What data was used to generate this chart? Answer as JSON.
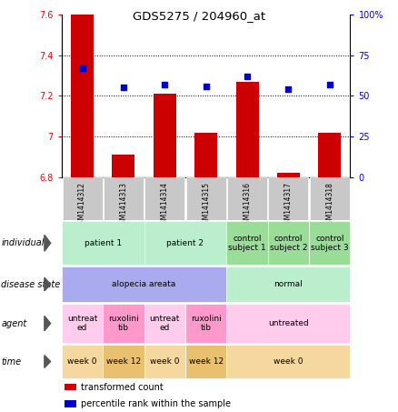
{
  "title": "GDS5275 / 204960_at",
  "samples": [
    "GSM1414312",
    "GSM1414313",
    "GSM1414314",
    "GSM1414315",
    "GSM1414316",
    "GSM1414317",
    "GSM1414318"
  ],
  "bar_values": [
    7.6,
    6.91,
    7.21,
    7.02,
    7.27,
    6.82,
    7.02
  ],
  "dot_values": [
    67,
    55,
    57,
    56,
    62,
    54,
    57
  ],
  "ylim": [
    6.8,
    7.6
  ],
  "yticks": [
    6.8,
    7.0,
    7.2,
    7.4,
    7.6
  ],
  "ytick_labels": [
    "6.8",
    "7",
    "7.2",
    "7.4",
    "7.6"
  ],
  "y2lim": [
    0,
    100
  ],
  "y2ticks": [
    0,
    25,
    50,
    75,
    100
  ],
  "y2ticklabels": [
    "0",
    "25",
    "50",
    "75",
    "100%"
  ],
  "bar_color": "#cc0000",
  "dot_color": "#0000cc",
  "bar_width": 0.55,
  "individual_labels": [
    {
      "text": "patient 1",
      "cols": [
        0,
        1
      ],
      "color": "#bbeecc"
    },
    {
      "text": "patient 2",
      "cols": [
        2,
        3
      ],
      "color": "#bbeecc"
    },
    {
      "text": "control\nsubject 1",
      "cols": [
        4
      ],
      "color": "#99dd99"
    },
    {
      "text": "control\nsubject 2",
      "cols": [
        5
      ],
      "color": "#99dd99"
    },
    {
      "text": "control\nsubject 3",
      "cols": [
        6
      ],
      "color": "#99dd99"
    }
  ],
  "disease_labels": [
    {
      "text": "alopecia areata",
      "cols": [
        0,
        1,
        2,
        3
      ],
      "color": "#aaaaee"
    },
    {
      "text": "normal",
      "cols": [
        4,
        5,
        6
      ],
      "color": "#bbeecc"
    }
  ],
  "agent_labels": [
    {
      "text": "untreat\ned",
      "cols": [
        0
      ],
      "color": "#ffccee"
    },
    {
      "text": "ruxolini\ntib",
      "cols": [
        1
      ],
      "color": "#ff99cc"
    },
    {
      "text": "untreat\ned",
      "cols": [
        2
      ],
      "color": "#ffccee"
    },
    {
      "text": "ruxolini\ntib",
      "cols": [
        3
      ],
      "color": "#ff99cc"
    },
    {
      "text": "untreated",
      "cols": [
        4,
        5,
        6
      ],
      "color": "#ffccee"
    }
  ],
  "time_labels": [
    {
      "text": "week 0",
      "cols": [
        0
      ],
      "color": "#f5d8a0"
    },
    {
      "text": "week 12",
      "cols": [
        1
      ],
      "color": "#e8c070"
    },
    {
      "text": "week 0",
      "cols": [
        2
      ],
      "color": "#f5d8a0"
    },
    {
      "text": "week 12",
      "cols": [
        3
      ],
      "color": "#e8c070"
    },
    {
      "text": "week 0",
      "cols": [
        4,
        5,
        6
      ],
      "color": "#f5d8a0"
    }
  ],
  "legend_items": [
    {
      "label": "transformed count",
      "color": "#cc0000"
    },
    {
      "label": "percentile rank within the sample",
      "color": "#0000cc"
    }
  ],
  "fig_width": 4.38,
  "fig_height": 4.53,
  "dpi": 100
}
